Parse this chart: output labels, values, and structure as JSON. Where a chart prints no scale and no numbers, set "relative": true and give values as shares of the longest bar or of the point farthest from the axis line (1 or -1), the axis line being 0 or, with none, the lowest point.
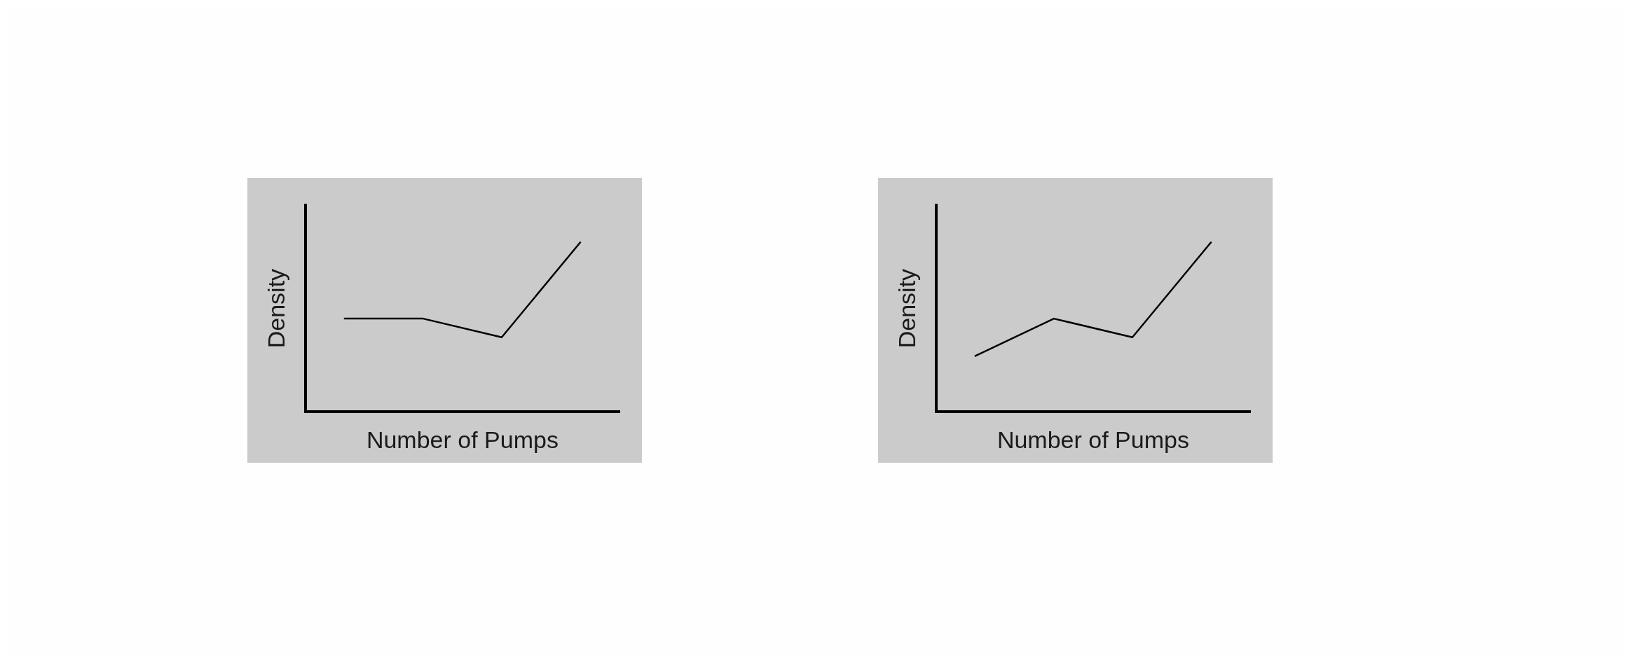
{
  "chart_data": [
    {
      "type": "line",
      "xlabel": "Number of Pumps",
      "ylabel": "Density",
      "categories": [
        null,
        null,
        null,
        null
      ],
      "values": [
        0.55,
        0.55,
        0.44,
        1
      ],
      "color": "#000000",
      "relative": true,
      "marker": "none",
      "grid": false,
      "legend": false
    },
    {
      "type": "line",
      "xlabel": "Number of Pumps",
      "ylabel": "Density",
      "categories": [
        null,
        null,
        null,
        null
      ],
      "values": [
        0.33,
        0.55,
        0.44,
        1
      ],
      "color": "#000000",
      "relative": true,
      "marker": "none",
      "grid": false,
      "legend": false
    }
  ]
}
